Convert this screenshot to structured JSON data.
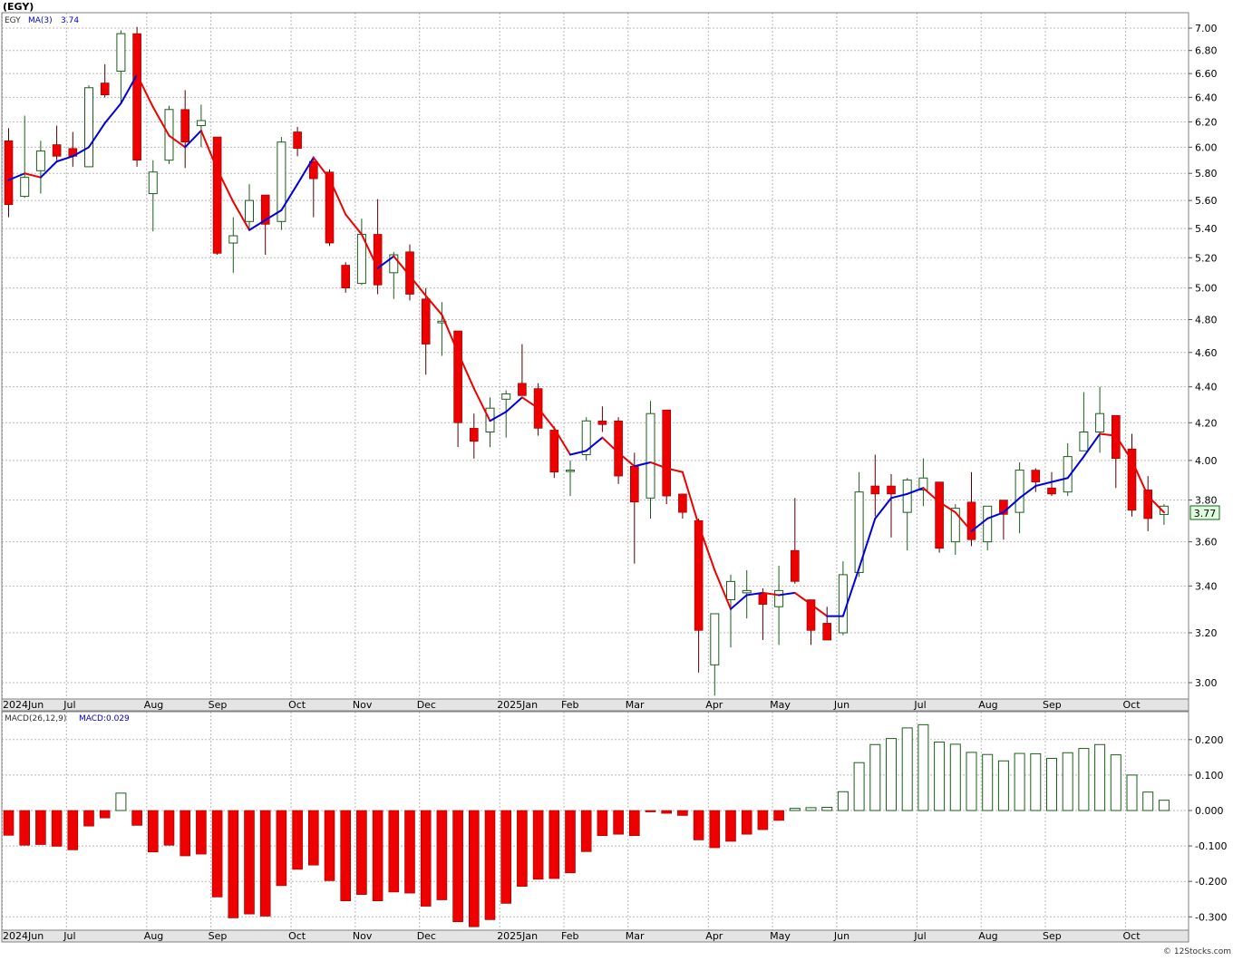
{
  "header": {
    "symbol": "(EGY)",
    "ticker": "EGY",
    "ma_label": "MA(3)",
    "ma_value": "3.74",
    "last_price": "3.77",
    "macd_label": "MACD(26,12,9)",
    "macd_value_label": "MACD:0.029",
    "watermark": "© 12Stocks.com"
  },
  "colors": {
    "up": "#1b5e1b",
    "down": "#ee0000",
    "ma_up": "#0000dd",
    "ma_down": "#ee0000",
    "grid": "#b8b8b8",
    "frame": "#808080"
  },
  "chart_data": [
    {
      "type": "candlestick",
      "title": "(EGY)",
      "period": "weekly",
      "ylim": [
        2.92,
        7.08
      ],
      "y_scale": "log",
      "y_ticks": [
        "7.00",
        "6.80",
        "6.60",
        "6.40",
        "6.20",
        "6.00",
        "5.80",
        "5.60",
        "5.40",
        "5.20",
        "5.00",
        "4.80",
        "4.60",
        "4.40",
        "4.20",
        "4.00",
        "3.80",
        "3.60",
        "3.40",
        "3.20",
        "3.00"
      ],
      "x_tick_labels": [
        {
          "label": "2024Jun",
          "index": 0
        },
        {
          "label": "Jul",
          "index": 4
        },
        {
          "label": "Aug",
          "index": 9
        },
        {
          "label": "Sep",
          "index": 13
        },
        {
          "label": "Oct",
          "index": 18
        },
        {
          "label": "Nov",
          "index": 22
        },
        {
          "label": "Dec",
          "index": 26
        },
        {
          "label": "2025Jan",
          "index": 31
        },
        {
          "label": "Feb",
          "index": 35
        },
        {
          "label": "Mar",
          "index": 39
        },
        {
          "label": "Apr",
          "index": 44
        },
        {
          "label": "May",
          "index": 48
        },
        {
          "label": "Jun",
          "index": 52
        },
        {
          "label": "Jul",
          "index": 57
        },
        {
          "label": "Aug",
          "index": 61
        },
        {
          "label": "Sep",
          "index": 65
        },
        {
          "label": "Oct",
          "index": 70
        }
      ],
      "grid": true,
      "series": [
        {
          "type": "candlestick",
          "ohlc": [
            [
              6.05,
              6.15,
              5.48,
              5.57
            ],
            [
              5.63,
              6.25,
              5.62,
              5.77
            ],
            [
              5.82,
              6.05,
              5.65,
              5.97
            ],
            [
              6.02,
              6.17,
              5.9,
              5.93
            ],
            [
              5.99,
              6.12,
              5.85,
              5.93
            ],
            [
              5.85,
              6.5,
              5.85,
              6.48
            ],
            [
              6.52,
              6.68,
              6.4,
              6.42
            ],
            [
              6.62,
              6.98,
              6.35,
              6.95
            ],
            [
              6.95,
              7.01,
              5.85,
              5.9
            ],
            [
              5.65,
              5.9,
              5.38,
              5.81
            ],
            [
              5.9,
              6.33,
              5.87,
              6.3
            ],
            [
              6.3,
              6.46,
              5.84,
              6.04
            ],
            [
              6.17,
              6.34,
              6.0,
              6.21
            ],
            [
              6.08,
              6.08,
              5.22,
              5.23
            ],
            [
              5.3,
              5.48,
              5.1,
              5.35
            ],
            [
              5.45,
              5.72,
              5.4,
              5.6
            ],
            [
              5.64,
              5.64,
              5.22,
              5.43
            ],
            [
              5.45,
              6.08,
              5.39,
              6.04
            ],
            [
              6.12,
              6.16,
              5.93,
              5.99
            ],
            [
              5.89,
              5.93,
              5.48,
              5.76
            ],
            [
              5.81,
              5.83,
              5.28,
              5.3
            ],
            [
              5.15,
              5.17,
              4.97,
              5.0
            ],
            [
              5.03,
              5.47,
              5.02,
              5.36
            ],
            [
              5.36,
              5.61,
              4.96,
              5.02
            ],
            [
              5.1,
              5.24,
              4.93,
              5.22
            ],
            [
              5.24,
              5.29,
              4.92,
              4.96
            ],
            [
              4.93,
              5.0,
              4.47,
              4.65
            ],
            [
              4.78,
              4.91,
              4.58,
              4.79
            ],
            [
              4.73,
              4.73,
              4.07,
              4.2
            ],
            [
              4.17,
              4.25,
              4.01,
              4.1
            ],
            [
              4.15,
              4.34,
              4.07,
              4.28
            ],
            [
              4.33,
              4.38,
              4.12,
              4.36
            ],
            [
              4.42,
              4.65,
              4.35,
              4.35
            ],
            [
              4.39,
              4.42,
              4.13,
              4.17
            ],
            [
              4.16,
              4.18,
              3.91,
              3.94
            ],
            [
              3.95,
              4.0,
              3.82,
              3.95
            ],
            [
              4.03,
              4.23,
              4.0,
              4.21
            ],
            [
              4.21,
              4.29,
              4.15,
              4.19
            ],
            [
              4.21,
              4.23,
              3.88,
              3.92
            ],
            [
              3.97,
              4.04,
              3.5,
              3.79
            ],
            [
              3.81,
              4.32,
              3.71,
              4.25
            ],
            [
              4.27,
              4.27,
              3.78,
              3.82
            ],
            [
              3.83,
              3.83,
              3.71,
              3.74
            ],
            [
              3.7,
              3.71,
              3.04,
              3.21
            ],
            [
              3.07,
              3.28,
              2.95,
              3.28
            ],
            [
              3.34,
              3.45,
              3.14,
              3.42
            ],
            [
              3.37,
              3.47,
              3.26,
              3.38
            ],
            [
              3.37,
              3.39,
              3.17,
              3.32
            ],
            [
              3.31,
              3.49,
              3.15,
              3.38
            ],
            [
              3.56,
              3.81,
              3.41,
              3.42
            ],
            [
              3.34,
              3.34,
              3.15,
              3.21
            ],
            [
              3.24,
              3.31,
              3.17,
              3.17
            ],
            [
              3.2,
              3.51,
              3.19,
              3.45
            ],
            [
              3.46,
              3.94,
              3.44,
              3.84
            ],
            [
              3.87,
              4.03,
              3.72,
              3.83
            ],
            [
              3.87,
              3.93,
              3.62,
              3.83
            ],
            [
              3.74,
              3.91,
              3.56,
              3.9
            ],
            [
              3.85,
              4.01,
              3.77,
              3.91
            ],
            [
              3.89,
              3.89,
              3.55,
              3.57
            ],
            [
              3.6,
              3.78,
              3.54,
              3.76
            ],
            [
              3.79,
              3.94,
              3.58,
              3.61
            ],
            [
              3.6,
              3.77,
              3.56,
              3.77
            ],
            [
              3.8,
              3.8,
              3.61,
              3.73
            ],
            [
              3.74,
              3.99,
              3.64,
              3.95
            ],
            [
              3.95,
              3.96,
              3.84,
              3.89
            ],
            [
              3.86,
              3.94,
              3.82,
              3.83
            ],
            [
              3.84,
              4.09,
              3.82,
              4.02
            ],
            [
              4.05,
              4.37,
              4.08,
              4.15
            ],
            [
              4.15,
              4.4,
              4.04,
              4.25
            ],
            [
              4.24,
              4.24,
              3.86,
              4.01
            ],
            [
              4.06,
              4.14,
              3.72,
              3.75
            ],
            [
              3.85,
              3.92,
              3.65,
              3.71
            ],
            [
              3.73,
              3.78,
              3.68,
              3.77
            ]
          ]
        },
        {
          "name": "MA(3)",
          "type": "line",
          "values": [
            5.75,
            5.8,
            5.77,
            5.89,
            5.93,
            6.0,
            6.19,
            6.35,
            6.59,
            6.32,
            6.09,
            6.0,
            6.13,
            5.83,
            5.59,
            5.39,
            5.46,
            5.53,
            5.72,
            5.92,
            5.76,
            5.5,
            5.36,
            5.13,
            5.21,
            5.08,
            4.95,
            4.83,
            4.6,
            4.39,
            4.21,
            4.26,
            4.34,
            4.28,
            4.17,
            4.03,
            4.05,
            4.12,
            4.04,
            3.97,
            3.99,
            3.96,
            3.94,
            3.68,
            3.47,
            3.3,
            3.36,
            3.37,
            3.36,
            3.37,
            3.32,
            3.27,
            3.27,
            3.48,
            3.71,
            3.81,
            3.83,
            3.86,
            3.79,
            3.74,
            3.65,
            3.71,
            3.74,
            3.81,
            3.87,
            3.89,
            3.91,
            4.02,
            4.14,
            4.13,
            4.0,
            3.82,
            3.74
          ]
        }
      ]
    },
    {
      "type": "bar",
      "title": "MACD(26,12,9)",
      "ylim": [
        -0.33,
        0.26
      ],
      "y_ticks": [
        "0.200",
        "0.100",
        "0.000",
        "-0.100",
        "-0.200",
        "-0.300"
      ],
      "series": [
        {
          "name": "MACD",
          "values": [
            -0.07,
            -0.098,
            -0.096,
            -0.101,
            -0.111,
            -0.044,
            -0.021,
            0.049,
            -0.042,
            -0.117,
            -0.098,
            -0.128,
            -0.123,
            -0.244,
            -0.303,
            -0.292,
            -0.298,
            -0.212,
            -0.166,
            -0.154,
            -0.198,
            -0.255,
            -0.237,
            -0.255,
            -0.23,
            -0.233,
            -0.27,
            -0.252,
            -0.314,
            -0.328,
            -0.308,
            -0.262,
            -0.214,
            -0.194,
            -0.192,
            -0.176,
            -0.116,
            -0.071,
            -0.067,
            -0.071,
            -0.004,
            -0.008,
            -0.014,
            -0.083,
            -0.105,
            -0.087,
            -0.067,
            -0.054,
            -0.028,
            0.006,
            0.008,
            0.009,
            0.053,
            0.135,
            0.186,
            0.203,
            0.233,
            0.242,
            0.193,
            0.187,
            0.164,
            0.158,
            0.14,
            0.161,
            0.16,
            0.147,
            0.163,
            0.175,
            0.186,
            0.157,
            0.1,
            0.052,
            0.029
          ]
        }
      ]
    }
  ]
}
